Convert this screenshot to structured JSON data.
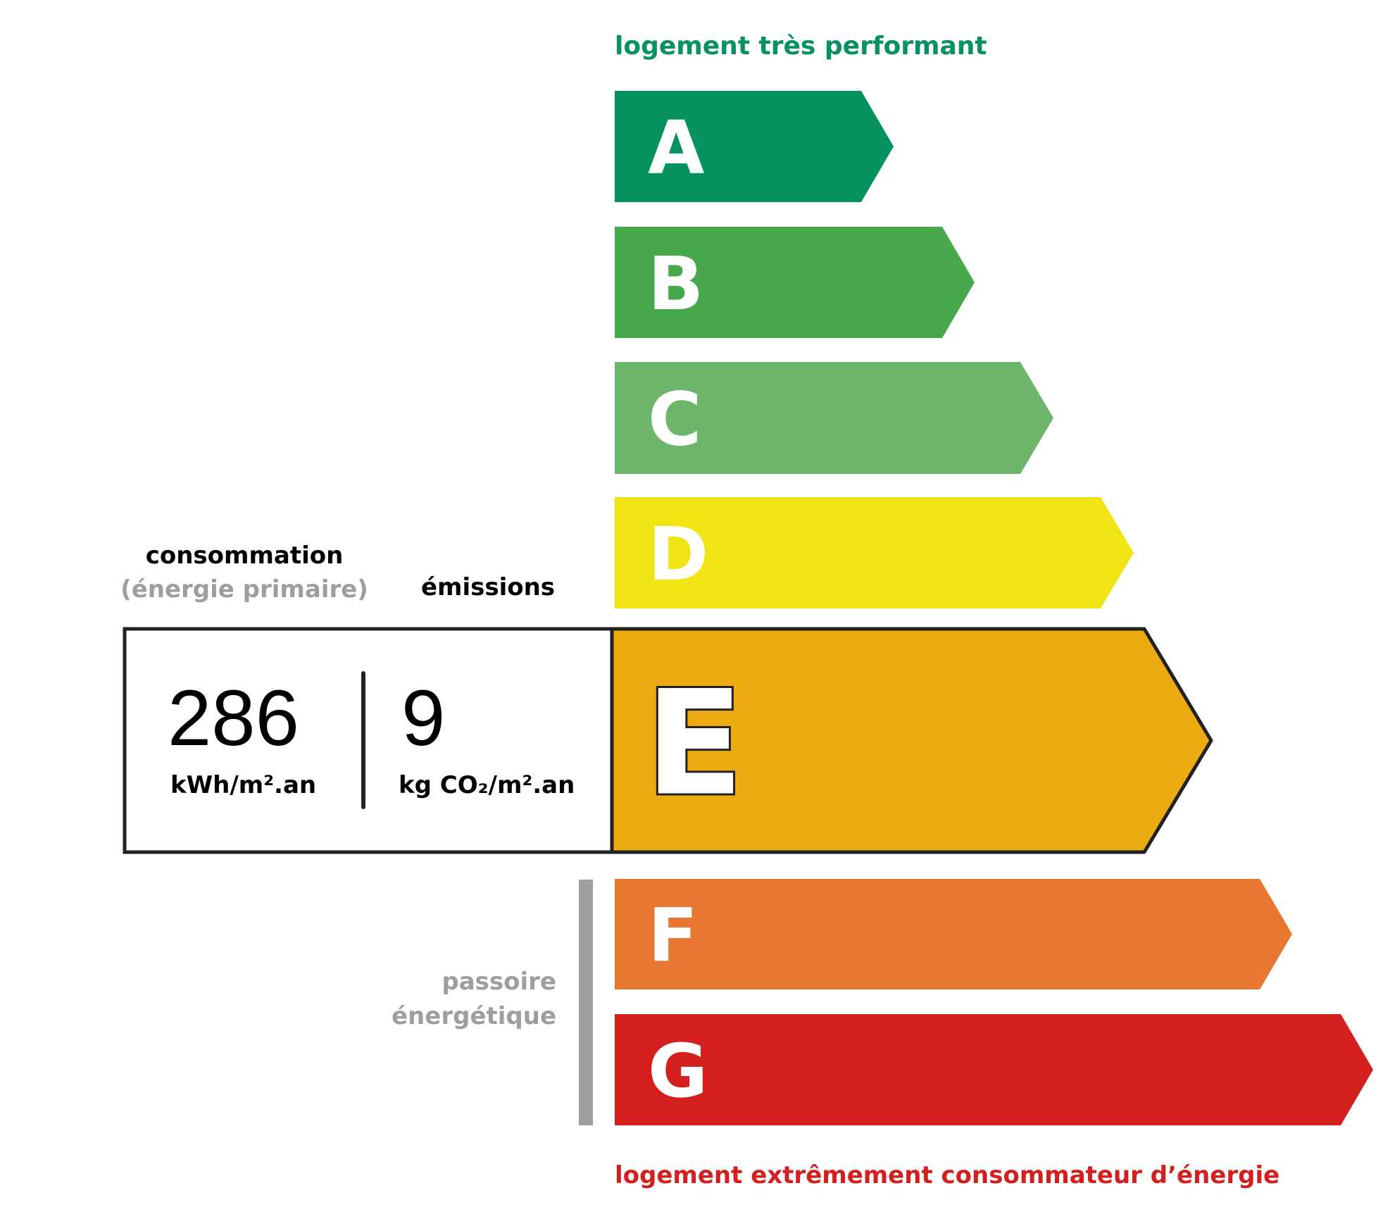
{
  "top_label": "logement très performant",
  "bottom_label": "logement extrêmement consommateur d’énergie",
  "colors": {
    "top_label": "#06925f",
    "bottom_label": "#d3201f",
    "passoire_bar": "#9e9e9e",
    "passoire_text": "#9e9e9e"
  },
  "classes": [
    {
      "letter": "A",
      "color": "#05925f"
    },
    {
      "letter": "B",
      "color": "#48a84c"
    },
    {
      "letter": "C",
      "color": "#6eb66c"
    },
    {
      "letter": "D",
      "color": "#f1e414"
    },
    {
      "letter": "E",
      "color": "#ecab10"
    },
    {
      "letter": "F",
      "color": "#e77731"
    },
    {
      "letter": "G",
      "color": "#d3201f"
    }
  ],
  "current_class": "E",
  "consumption": {
    "heading": "consommation",
    "subheading": "(énergie primaire)",
    "value": "286",
    "unit": "kWh/m².an"
  },
  "emissions": {
    "heading": "émissions",
    "value": "9",
    "unit": "kg CO₂/m².an"
  },
  "passoire": {
    "line1": "passoire",
    "line2": "énergétique"
  }
}
